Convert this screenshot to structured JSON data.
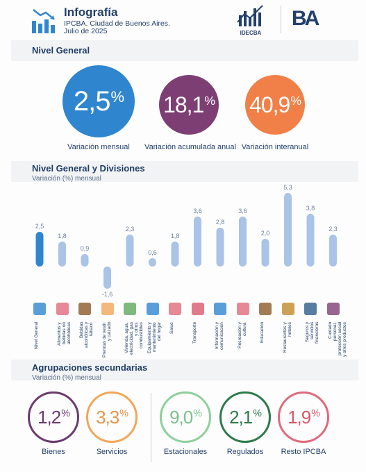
{
  "header": {
    "title": "Infografía",
    "subtitle_line1": "IPCBA. Ciudad de Buenos Aires.",
    "subtitle_line2": "Julio de 2025",
    "logo_idec": "IDECBA",
    "logo_ba": "BA"
  },
  "nivel_general": {
    "title": "Nivel General",
    "items": [
      {
        "value": "2,5",
        "caption": "Variación mensual",
        "color": "#2f86cf"
      },
      {
        "value": "18,1",
        "caption": "Variación acumulada anual",
        "color": "#7d3f73"
      },
      {
        "value": "40,9",
        "caption": "Variación interanual",
        "color": "#f08048"
      }
    ]
  },
  "divisiones": {
    "title": "Nivel General y Divisiones",
    "subtitle": "Variación (%) mensual"
  },
  "chart_data": {
    "type": "bar",
    "categories": [
      "Nivel General",
      "Alimentos y bebidas no alcohólicas",
      "Bebidas alcohólicas y tabaco",
      "Prendas de vestir y calzado",
      "Vivienda, agua, electricidad, gas y otros combustibles",
      "Equipamiento y mantenimiento del hogar",
      "Salud",
      "Transporte",
      "Información y comunicación",
      "Recreación y cultura",
      "Educación",
      "Restaurantes y hoteles",
      "Seguros y servicios financieros",
      "Cuidado personal, protección social y otros productos"
    ],
    "value_labels": [
      "2,5",
      "1,8",
      "0,9",
      "-1,6",
      "2,3",
      "0,6",
      "1,8",
      "3,6",
      "2,8",
      "3,6",
      "2,0",
      "5,3",
      "3,8",
      "2,3"
    ],
    "values": [
      2.5,
      1.8,
      0.9,
      -1.6,
      2.3,
      0.6,
      1.8,
      3.6,
      2.8,
      3.6,
      2.0,
      5.3,
      3.8,
      2.3
    ],
    "colors": {
      "highlight": "#2f86cf",
      "bars": "#a9c4e6"
    },
    "xlabel": "",
    "ylabel": ""
  },
  "icons": [
    "index-icon",
    "food-icon",
    "bottle-icon",
    "clothing-icon",
    "house-icon",
    "furniture-icon",
    "health-icon",
    "car-icon",
    "computer-icon",
    "recreation-icon",
    "education-icon",
    "restaurant-icon",
    "bank-icon",
    "personal-care-icon"
  ],
  "agrupaciones": {
    "title": "Agrupaciones secundarias",
    "subtitle": "Variación (%) mensual",
    "items": [
      {
        "value": "1,2",
        "caption": "Bienes",
        "color": "#6b3b6e"
      },
      {
        "value": "3,3",
        "caption": "Servicios",
        "color": "#f2a65a"
      },
      {
        "value": "9,0",
        "caption": "Estacionales",
        "color": "#8fcf9b"
      },
      {
        "value": "2,1",
        "caption": "Regulados",
        "color": "#2e7a4a"
      },
      {
        "value": "1,9",
        "caption": "Resto IPCBA",
        "color": "#e06a7a"
      }
    ]
  }
}
